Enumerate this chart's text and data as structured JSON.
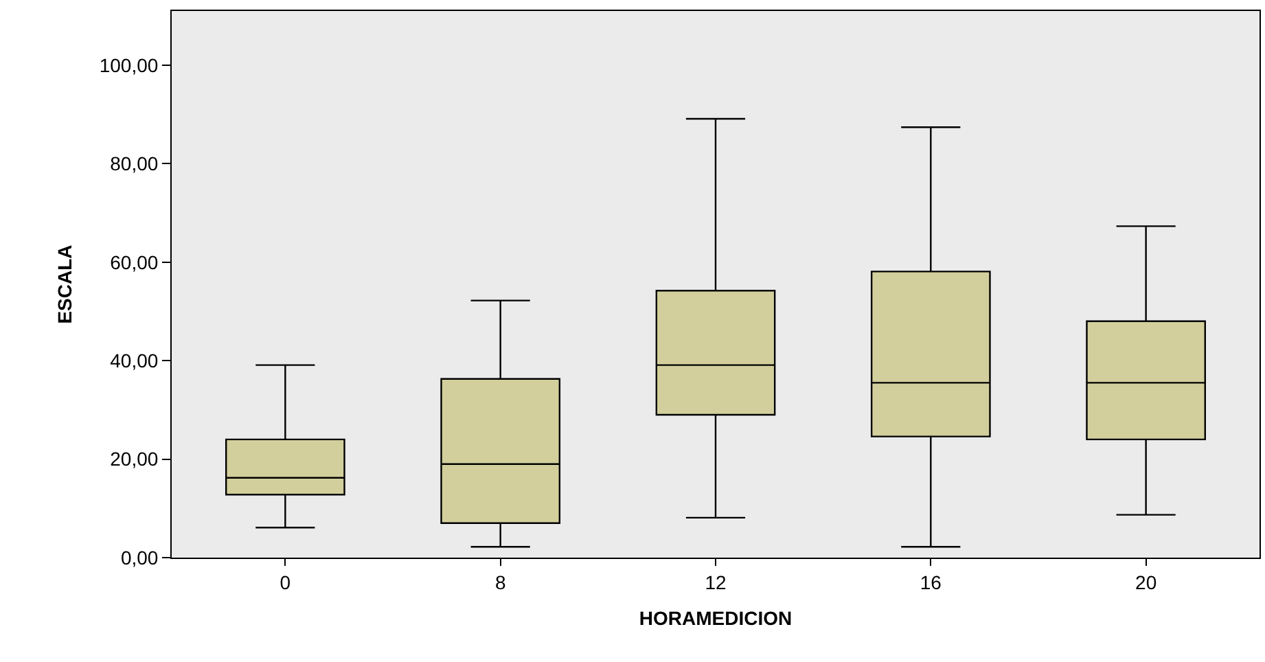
{
  "chart_data": {
    "type": "box",
    "xlabel": "HORAMEDICION",
    "ylabel": "ESCALA",
    "categories": [
      "0",
      "8",
      "12",
      "16",
      "20"
    ],
    "color": "#d3cf9c",
    "boxes": [
      {
        "low": 6.1,
        "q1": 12.8,
        "median": 16.2,
        "q3": 24,
        "high": 39.1
      },
      {
        "low": 2.2,
        "q1": 7,
        "median": 19,
        "q3": 36.3,
        "high": 52.2
      },
      {
        "low": 8.1,
        "q1": 29,
        "median": 39.1,
        "q3": 54.2,
        "high": 89.1
      },
      {
        "low": 2.2,
        "q1": 24.6,
        "median": 35.5,
        "q3": 58.1,
        "high": 87.4
      },
      {
        "low": 8.7,
        "q1": 24,
        "median": 35.5,
        "q3": 48,
        "high": 67.3
      }
    ],
    "ylim": [
      0,
      111
    ],
    "yticks": [
      {
        "value": 0,
        "label": "0,00"
      },
      {
        "value": 20,
        "label": "20,00"
      },
      {
        "value": 40,
        "label": "40,00"
      },
      {
        "value": 60,
        "label": "60,00"
      },
      {
        "value": 80,
        "label": "80,00"
      },
      {
        "value": 100,
        "label": "100,00"
      }
    ],
    "grid": false
  }
}
